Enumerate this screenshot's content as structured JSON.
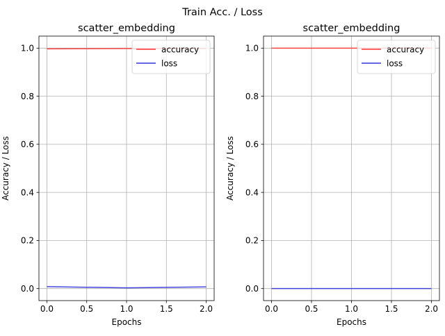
{
  "figure": {
    "suptitle": "Train Acc. / Loss"
  },
  "chart_data": [
    {
      "type": "line",
      "title": "scatter_embedding",
      "xlabel": "Epochs",
      "ylabel": "Accuracy / Loss",
      "xlim": [
        -0.1,
        2.1
      ],
      "ylim": [
        -0.05,
        1.05
      ],
      "xticks": [
        0.0,
        0.5,
        1.0,
        1.5,
        2.0
      ],
      "xtick_labels": [
        "0.0",
        "0.5",
        "1.0",
        "1.5",
        "2.0"
      ],
      "yticks": [
        0.0,
        0.2,
        0.4,
        0.6,
        0.8,
        1.0
      ],
      "ytick_labels": [
        "0.0",
        "0.2",
        "0.4",
        "0.6",
        "0.8",
        "1.0"
      ],
      "grid": true,
      "legend_position": "top-right",
      "x": [
        0,
        1,
        2
      ],
      "series": [
        {
          "name": "accuracy",
          "color": "#ff3333",
          "values": [
            0.997,
            0.9985,
            0.9985
          ]
        },
        {
          "name": "loss",
          "color": "#3333dd",
          "values": [
            0.008,
            0.003,
            0.007
          ]
        }
      ]
    },
    {
      "type": "line",
      "title": "scatter_embedding",
      "xlabel": "Epochs",
      "ylabel": "Accuracy / Loss",
      "xlim": [
        -0.1,
        2.1
      ],
      "ylim": [
        -0.05,
        1.05
      ],
      "xticks": [
        0.0,
        0.5,
        1.0,
        1.5,
        2.0
      ],
      "xtick_labels": [
        "0.0",
        "0.5",
        "1.0",
        "1.5",
        "2.0"
      ],
      "yticks": [
        0.0,
        0.2,
        0.4,
        0.6,
        0.8,
        1.0
      ],
      "ytick_labels": [
        "0.0",
        "0.2",
        "0.4",
        "0.6",
        "0.8",
        "1.0"
      ],
      "grid": true,
      "legend_position": "top-right",
      "x": [
        0,
        1,
        2
      ],
      "series": [
        {
          "name": "accuracy",
          "color": "#ff3333",
          "values": [
            1.0,
            1.0,
            1.0
          ]
        },
        {
          "name": "loss",
          "color": "#3333dd",
          "values": [
            0.0,
            0.0,
            0.0
          ]
        }
      ]
    }
  ]
}
